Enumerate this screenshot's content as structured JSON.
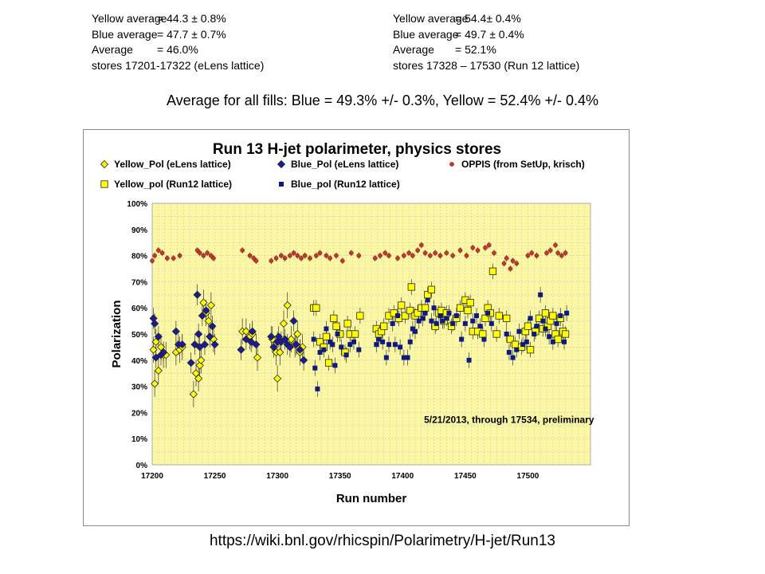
{
  "stats_left": {
    "yellow_key": "Yellow average",
    "yellow_val": "= 44.3 ± 0.8%",
    "blue_key": "Blue average",
    "blue_val": "= 47.7 ± 0.7%",
    "avg_key": "Average",
    "avg_val": "= 46.0%",
    "stores": "stores 17201-17322 (eLens lattice)"
  },
  "stats_right": {
    "yellow_key": "Yellow average",
    "yellow_val": "= 54.4± 0.4%",
    "blue_key": "Blue average",
    "blue_val": "= 49.7 ± 0.4%",
    "avg_key": "Average",
    "avg_val": "= 52.1%",
    "stores": "stores 17328 – 17530 (Run 12 lattice)"
  },
  "summary": "Average for all fills: Blue = 49.3% +/- 0.3%, Yellow = 52.4% +/- 0.4%",
  "footer_url": "https://wiki.bnl.gov/rhicspin/Polarimetry/H-jet/Run13",
  "colors": {
    "plot_bg": "#fbf7a2",
    "yellow_marker": "#ffff00",
    "blue_marker": "#1a1a9e",
    "run12_blue_marker": "#0d1a80",
    "oppis_marker": "#c0392b",
    "grid": "#c8c8c8"
  },
  "chart_data": {
    "type": "scatter",
    "title": "Run 13 H-jet polarimeter, physics stores",
    "xlabel": "Run number",
    "ylabel": "Polarization",
    "xlim": [
      17200,
      17550
    ],
    "ylim": [
      0,
      100
    ],
    "x_ticks": [
      "17200",
      "17250",
      "17300",
      "17350",
      "17400",
      "17450",
      "17500"
    ],
    "y_ticks": [
      "0%",
      "10%",
      "20%",
      "30%",
      "40%",
      "50%",
      "60%",
      "70%",
      "80%",
      "90%",
      "100%"
    ],
    "grid": "vertical and horizontal dashed",
    "legend_position": "top",
    "annotation": "5/21/2013, through 17534, preliminary",
    "series": [
      {
        "name": "Yellow_Pol (eLens lattice)",
        "marker": "diamond",
        "color": "#ffff00",
        "points": [
          [
            17201,
            44
          ],
          [
            17202,
            31
          ],
          [
            17203,
            47
          ],
          [
            17205,
            36
          ],
          [
            17207,
            45
          ],
          [
            17209,
            42
          ],
          [
            17211,
            42
          ],
          [
            17219,
            43
          ],
          [
            17222,
            44
          ],
          [
            17224,
            45
          ],
          [
            17233,
            27
          ],
          [
            17235,
            35
          ],
          [
            17237,
            33
          ],
          [
            17238,
            38
          ],
          [
            17239,
            40
          ],
          [
            17241,
            62
          ],
          [
            17243,
            58
          ],
          [
            17245,
            55
          ],
          [
            17247,
            61
          ],
          [
            17249,
            48
          ],
          [
            17272,
            51
          ],
          [
            17275,
            51
          ],
          [
            17278,
            49
          ],
          [
            17280,
            50
          ],
          [
            17284,
            41
          ],
          [
            17296,
            48
          ],
          [
            17299,
            43
          ],
          [
            17300,
            33
          ],
          [
            17302,
            43
          ],
          [
            17305,
            54
          ],
          [
            17308,
            61
          ],
          [
            17311,
            48
          ],
          [
            17314,
            46
          ],
          [
            17316,
            50
          ],
          [
            17318,
            43
          ],
          [
            17320,
            45
          ]
        ]
      },
      {
        "name": "Blue_Pol (eLens lattice)",
        "marker": "diamond",
        "color": "#1a1a9e",
        "points": [
          [
            17201,
            56
          ],
          [
            17202,
            54
          ],
          [
            17203,
            41
          ],
          [
            17205,
            49
          ],
          [
            17207,
            42
          ],
          [
            17209,
            43
          ],
          [
            17219,
            51
          ],
          [
            17221,
            46
          ],
          [
            17224,
            46
          ],
          [
            17231,
            39
          ],
          [
            17234,
            46
          ],
          [
            17236,
            65
          ],
          [
            17237,
            50
          ],
          [
            17238,
            45
          ],
          [
            17240,
            57
          ],
          [
            17242,
            46
          ],
          [
            17243,
            59
          ],
          [
            17246,
            49
          ],
          [
            17248,
            53
          ],
          [
            17250,
            46
          ],
          [
            17271,
            44
          ],
          [
            17275,
            48
          ],
          [
            17279,
            47
          ],
          [
            17280,
            51
          ],
          [
            17283,
            46
          ],
          [
            17295,
            49
          ],
          [
            17297,
            45
          ],
          [
            17300,
            47
          ],
          [
            17301,
            49
          ],
          [
            17303,
            47
          ],
          [
            17306,
            48
          ],
          [
            17308,
            46
          ],
          [
            17310,
            45
          ],
          [
            17313,
            55
          ],
          [
            17315,
            46
          ],
          [
            17318,
            44
          ],
          [
            17321,
            40
          ]
        ]
      },
      {
        "name": "OPPIS (from SetUp, krisch)",
        "marker": "circle",
        "color": "#c0392b",
        "points": [
          [
            17200,
            78
          ],
          [
            17202,
            80
          ],
          [
            17205,
            82
          ],
          [
            17208,
            81
          ],
          [
            17212,
            79
          ],
          [
            17217,
            79
          ],
          [
            17222,
            80
          ],
          [
            17236,
            82
          ],
          [
            17238,
            81
          ],
          [
            17241,
            80
          ],
          [
            17244,
            81
          ],
          [
            17247,
            80
          ],
          [
            17249,
            79
          ],
          [
            17272,
            82
          ],
          [
            17278,
            80
          ],
          [
            17281,
            79
          ],
          [
            17283,
            78
          ],
          [
            17295,
            78
          ],
          [
            17299,
            79
          ],
          [
            17303,
            80
          ],
          [
            17306,
            79
          ],
          [
            17310,
            80
          ],
          [
            17313,
            81
          ],
          [
            17316,
            80
          ],
          [
            17319,
            79
          ],
          [
            17322,
            80
          ],
          [
            17326,
            79
          ],
          [
            17331,
            80
          ],
          [
            17334,
            81
          ],
          [
            17339,
            80
          ],
          [
            17342,
            79
          ],
          [
            17347,
            80
          ],
          [
            17352,
            78
          ],
          [
            17359,
            81
          ],
          [
            17365,
            80
          ],
          [
            17378,
            79
          ],
          [
            17382,
            80
          ],
          [
            17386,
            81
          ],
          [
            17389,
            80
          ],
          [
            17396,
            79
          ],
          [
            17401,
            80
          ],
          [
            17405,
            81
          ],
          [
            17408,
            80
          ],
          [
            17412,
            82
          ],
          [
            17415,
            84
          ],
          [
            17418,
            81
          ],
          [
            17422,
            80
          ],
          [
            17426,
            81
          ],
          [
            17430,
            80
          ],
          [
            17435,
            81
          ],
          [
            17440,
            80
          ],
          [
            17446,
            82
          ],
          [
            17451,
            80
          ],
          [
            17456,
            83
          ],
          [
            17460,
            82
          ],
          [
            17466,
            83
          ],
          [
            17469,
            84
          ],
          [
            17473,
            81
          ],
          [
            17481,
            77
          ],
          [
            17483,
            79
          ],
          [
            17486,
            75
          ],
          [
            17488,
            78
          ],
          [
            17491,
            77
          ],
          [
            17500,
            80
          ],
          [
            17503,
            81
          ],
          [
            17507,
            80
          ],
          [
            17515,
            81
          ],
          [
            17518,
            82
          ],
          [
            17522,
            84
          ],
          [
            17524,
            81
          ],
          [
            17527,
            80
          ],
          [
            17530,
            81
          ]
        ]
      },
      {
        "name": "Yellow_pol (Run12 lattice)",
        "marker": "square",
        "color": "#ffff00",
        "points": [
          [
            17329,
            60
          ],
          [
            17331,
            60
          ],
          [
            17334,
            47
          ],
          [
            17337,
            45
          ],
          [
            17339,
            49
          ],
          [
            17341,
            39
          ],
          [
            17345,
            56
          ],
          [
            17347,
            53
          ],
          [
            17350,
            50
          ],
          [
            17354,
            43
          ],
          [
            17356,
            54
          ],
          [
            17358,
            50
          ],
          [
            17362,
            50
          ],
          [
            17366,
            57
          ],
          [
            17379,
            52
          ],
          [
            17381,
            50
          ],
          [
            17383,
            51
          ],
          [
            17385,
            53
          ],
          [
            17389,
            57
          ],
          [
            17393,
            58
          ],
          [
            17397,
            56
          ],
          [
            17399,
            61
          ],
          [
            17402,
            57
          ],
          [
            17406,
            59
          ],
          [
            17407,
            68
          ],
          [
            17410,
            57
          ],
          [
            17412,
            58
          ],
          [
            17415,
            60
          ],
          [
            17418,
            60
          ],
          [
            17420,
            65
          ],
          [
            17423,
            67
          ],
          [
            17426,
            53
          ],
          [
            17429,
            58
          ],
          [
            17431,
            59
          ],
          [
            17433,
            55
          ],
          [
            17435,
            58
          ],
          [
            17439,
            53
          ],
          [
            17443,
            56
          ],
          [
            17446,
            60
          ],
          [
            17450,
            63
          ],
          [
            17452,
            59
          ],
          [
            17454,
            62
          ],
          [
            17456,
            51
          ],
          [
            17460,
            51
          ],
          [
            17464,
            50
          ],
          [
            17466,
            56
          ],
          [
            17468,
            60
          ],
          [
            17470,
            58
          ],
          [
            17472,
            74
          ],
          [
            17475,
            50
          ],
          [
            17477,
            57
          ],
          [
            17483,
            56
          ],
          [
            17486,
            48
          ],
          [
            17490,
            46
          ],
          [
            17495,
            45
          ],
          [
            17498,
            51
          ],
          [
            17500,
            53
          ],
          [
            17502,
            44
          ],
          [
            17506,
            51
          ],
          [
            17509,
            56
          ],
          [
            17512,
            52
          ],
          [
            17514,
            58
          ],
          [
            17516,
            53
          ],
          [
            17518,
            55
          ],
          [
            17520,
            57
          ],
          [
            17522,
            50
          ],
          [
            17524,
            48
          ],
          [
            17526,
            56
          ],
          [
            17528,
            51
          ],
          [
            17530,
            50
          ]
        ]
      },
      {
        "name": "Blue_pol (Run12 lattice)",
        "marker": "square",
        "color": "#0d1a80",
        "points": [
          [
            17329,
            48
          ],
          [
            17330,
            37
          ],
          [
            17332,
            29
          ],
          [
            17334,
            43
          ],
          [
            17337,
            44
          ],
          [
            17339,
            52
          ],
          [
            17342,
            47
          ],
          [
            17344,
            46
          ],
          [
            17346,
            38
          ],
          [
            17348,
            50
          ],
          [
            17351,
            45
          ],
          [
            17355,
            42
          ],
          [
            17358,
            46
          ],
          [
            17361,
            47
          ],
          [
            17365,
            44
          ],
          [
            17379,
            46
          ],
          [
            17381,
            48
          ],
          [
            17384,
            47
          ],
          [
            17387,
            41
          ],
          [
            17389,
            46
          ],
          [
            17392,
            54
          ],
          [
            17394,
            46
          ],
          [
            17396,
            57
          ],
          [
            17398,
            45
          ],
          [
            17401,
            41
          ],
          [
            17404,
            41
          ],
          [
            17406,
            47
          ],
          [
            17408,
            52
          ],
          [
            17410,
            51
          ],
          [
            17413,
            55
          ],
          [
            17416,
            56
          ],
          [
            17418,
            58
          ],
          [
            17420,
            63
          ],
          [
            17423,
            55
          ],
          [
            17425,
            60
          ],
          [
            17427,
            54
          ],
          [
            17430,
            57
          ],
          [
            17432,
            55
          ],
          [
            17435,
            56
          ],
          [
            17437,
            58
          ],
          [
            17440,
            54
          ],
          [
            17443,
            57
          ],
          [
            17447,
            48
          ],
          [
            17450,
            54
          ],
          [
            17453,
            40
          ],
          [
            17456,
            55
          ],
          [
            17459,
            57
          ],
          [
            17462,
            53
          ],
          [
            17465,
            48
          ],
          [
            17468,
            58
          ],
          [
            17471,
            54
          ],
          [
            17483,
            50
          ],
          [
            17485,
            43
          ],
          [
            17488,
            41
          ],
          [
            17491,
            44
          ],
          [
            17493,
            51
          ],
          [
            17496,
            46
          ],
          [
            17499,
            47
          ],
          [
            17502,
            56
          ],
          [
            17505,
            50
          ],
          [
            17507,
            53
          ],
          [
            17510,
            65
          ],
          [
            17512,
            55
          ],
          [
            17514,
            52
          ],
          [
            17517,
            49
          ],
          [
            17520,
            47
          ],
          [
            17523,
            54
          ],
          [
            17526,
            57
          ],
          [
            17529,
            47
          ],
          [
            17531,
            58
          ]
        ]
      }
    ]
  }
}
